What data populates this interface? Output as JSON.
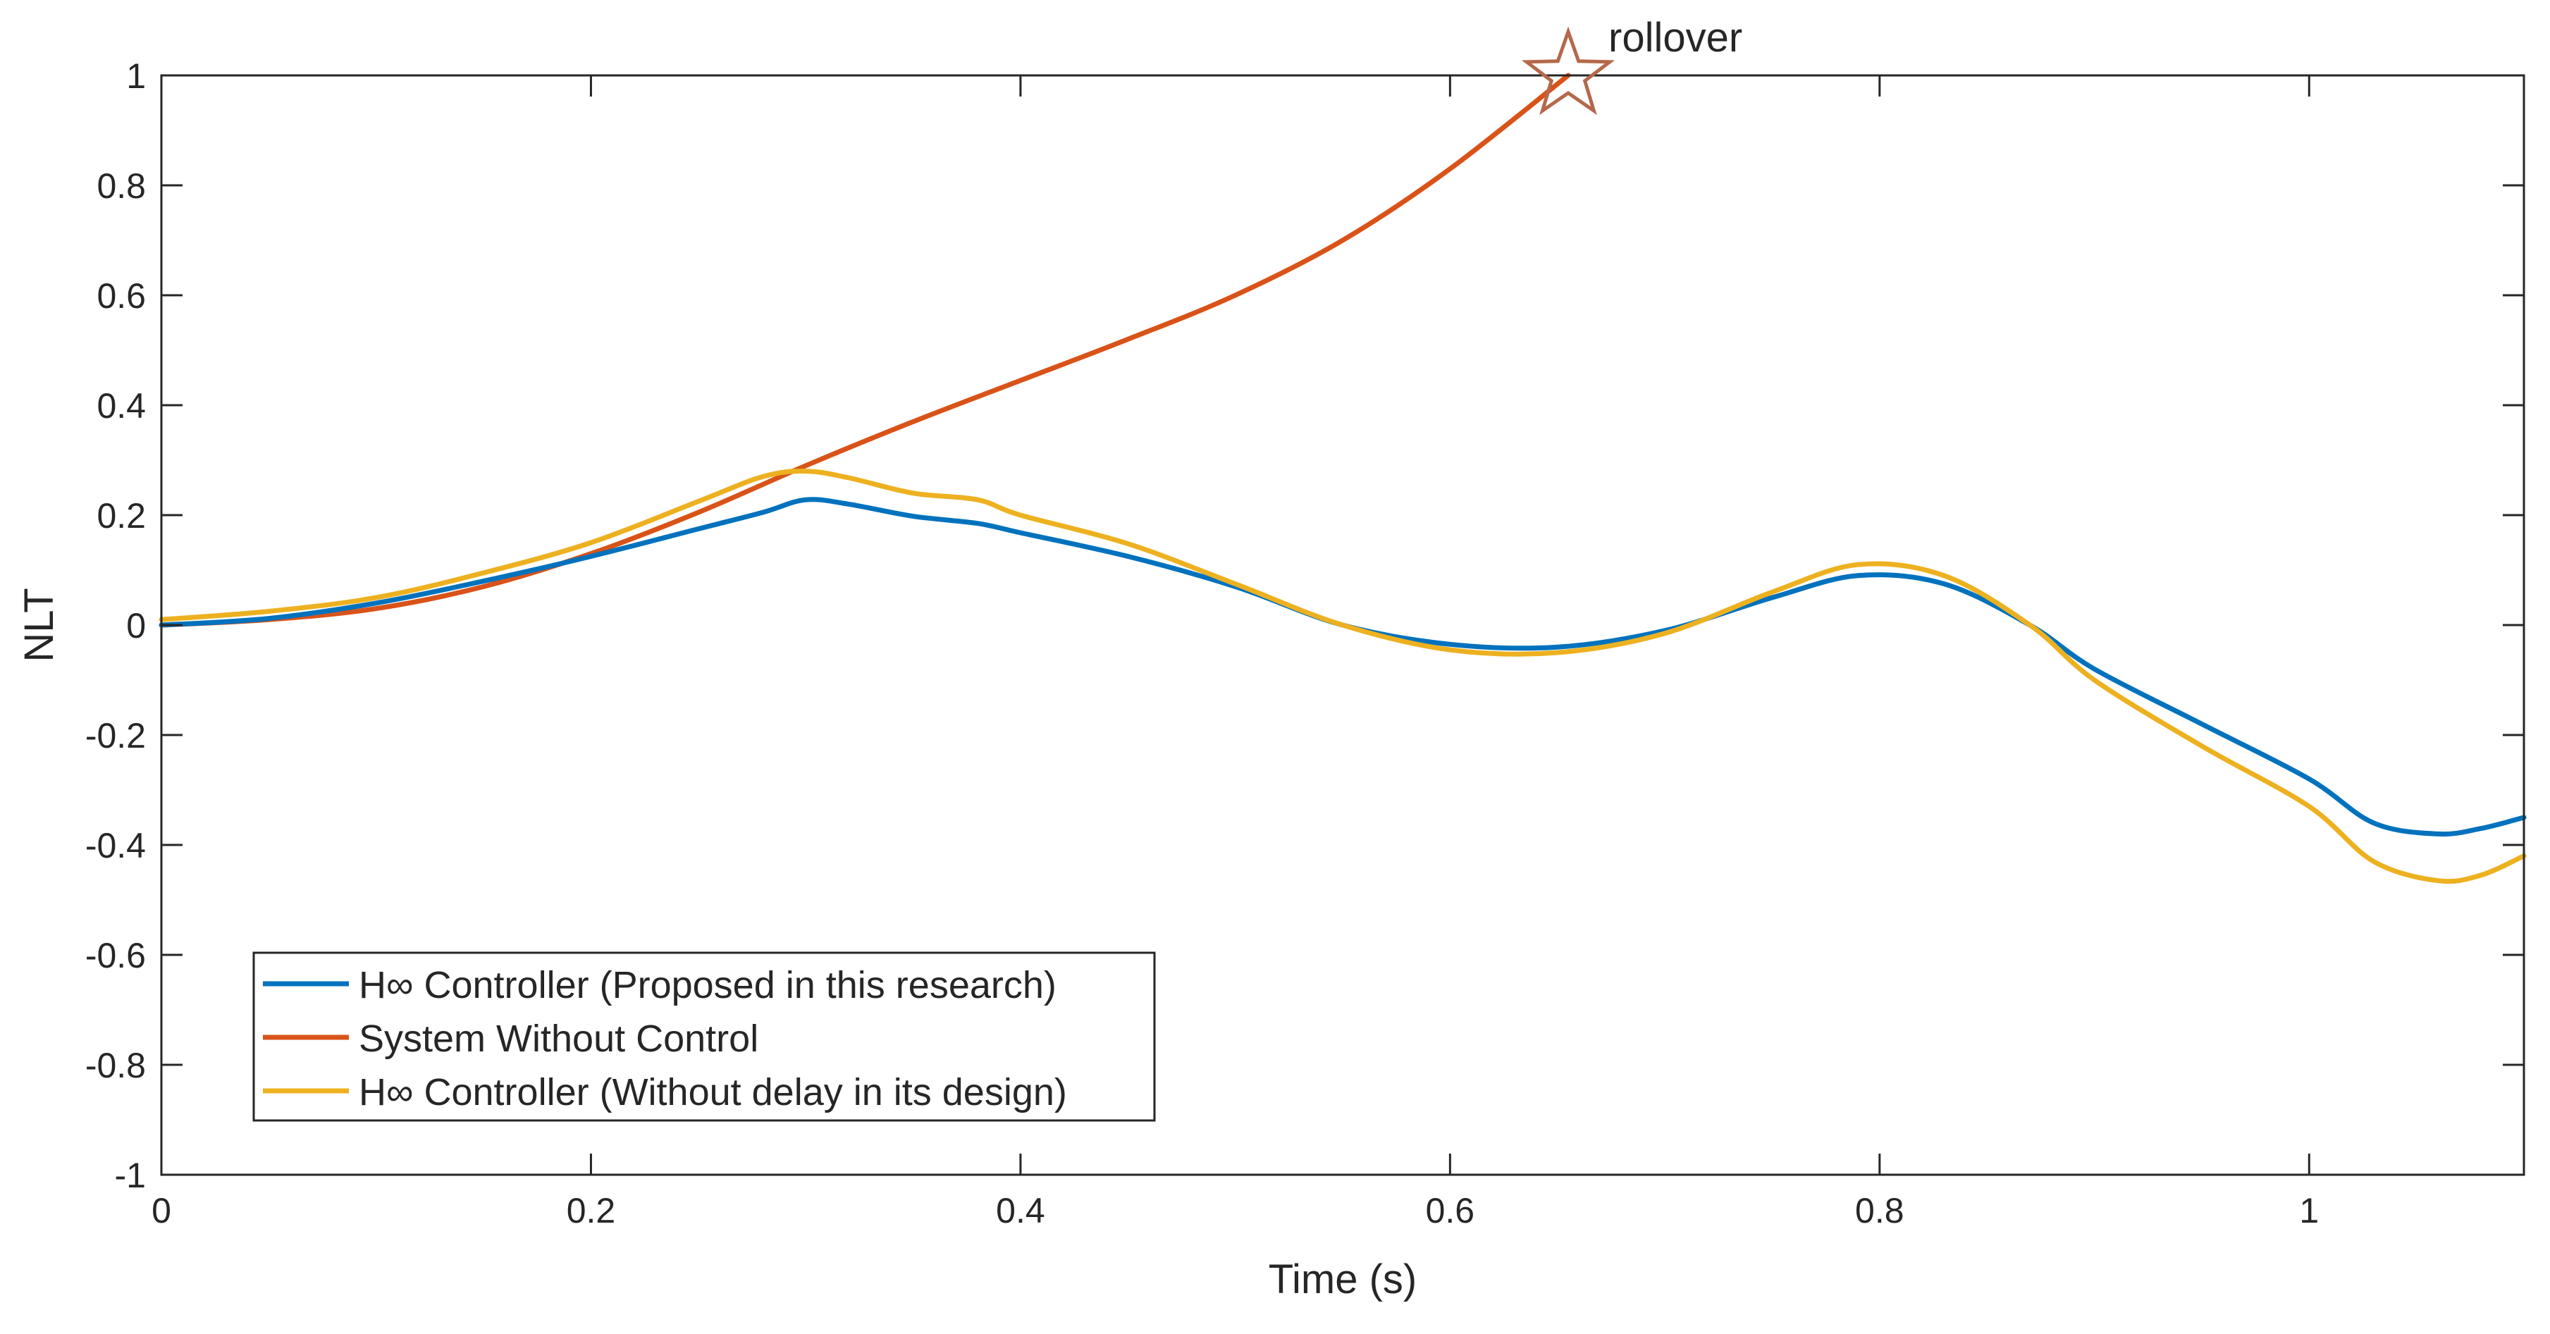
{
  "chart_data": {
    "type": "line",
    "title": "",
    "xlabel": "Time (s)",
    "ylabel": "NLT",
    "xlim": [
      0,
      1.1
    ],
    "ylim": [
      -1,
      1
    ],
    "xticks": [
      0,
      0.2,
      0.4,
      0.6,
      0.8,
      1
    ],
    "xtick_labels": [
      "0",
      "0.2",
      "0.4",
      "0.6",
      "0.8",
      "1"
    ],
    "yticks": [
      -1,
      -0.8,
      -0.6,
      -0.4,
      -0.2,
      0,
      0.2,
      0.4,
      0.6,
      0.8,
      1
    ],
    "ytick_labels": [
      "-1",
      "-0.8",
      "-0.6",
      "-0.4",
      "-0.2",
      "0",
      "0.2",
      "0.4",
      "0.6",
      "0.8",
      "1"
    ],
    "grid": false,
    "legend_position": "bottom-left",
    "annotation": {
      "text": "rollover",
      "marker": "star",
      "x": 0.655,
      "y": 1.0,
      "color": "#B5684A"
    },
    "series": [
      {
        "name": "H∞ Controller (Proposed in this research)",
        "color": "#0072BD",
        "x": [
          0,
          0.05,
          0.1,
          0.15,
          0.2,
          0.25,
          0.28,
          0.3,
          0.32,
          0.35,
          0.38,
          0.4,
          0.45,
          0.5,
          0.55,
          0.6,
          0.65,
          0.7,
          0.75,
          0.79,
          0.83,
          0.87,
          0.9,
          0.95,
          1.0,
          1.03,
          1.06,
          1.08,
          1.1
        ],
        "y": [
          0.0,
          0.012,
          0.04,
          0.08,
          0.125,
          0.175,
          0.205,
          0.228,
          0.22,
          0.198,
          0.185,
          0.168,
          0.125,
          0.07,
          0.0,
          -0.035,
          -0.04,
          -0.01,
          0.05,
          0.09,
          0.075,
          0.0,
          -0.08,
          -0.18,
          -0.28,
          -0.36,
          -0.38,
          -0.37,
          -0.35
        ]
      },
      {
        "name": "System Without Control",
        "color": "#D95319",
        "x": [
          0,
          0.05,
          0.1,
          0.15,
          0.2,
          0.25,
          0.3,
          0.35,
          0.4,
          0.45,
          0.5,
          0.55,
          0.6,
          0.655
        ],
        "y": [
          0.0,
          0.01,
          0.03,
          0.07,
          0.13,
          0.205,
          0.29,
          0.37,
          0.445,
          0.52,
          0.6,
          0.7,
          0.83,
          1.0
        ]
      },
      {
        "name": "H∞ Controller (Without delay in its design)",
        "color": "#EDB120",
        "x": [
          0,
          0.05,
          0.1,
          0.15,
          0.2,
          0.25,
          0.28,
          0.3,
          0.32,
          0.35,
          0.38,
          0.4,
          0.45,
          0.5,
          0.55,
          0.6,
          0.65,
          0.7,
          0.75,
          0.79,
          0.83,
          0.87,
          0.9,
          0.95,
          1.0,
          1.03,
          1.06,
          1.08,
          1.1
        ],
        "y": [
          0.01,
          0.025,
          0.05,
          0.095,
          0.15,
          0.225,
          0.27,
          0.28,
          0.268,
          0.24,
          0.228,
          0.2,
          0.148,
          0.075,
          0.0,
          -0.045,
          -0.05,
          -0.015,
          0.06,
          0.11,
          0.09,
          0.0,
          -0.1,
          -0.22,
          -0.33,
          -0.43,
          -0.465,
          -0.455,
          -0.42
        ]
      }
    ]
  }
}
